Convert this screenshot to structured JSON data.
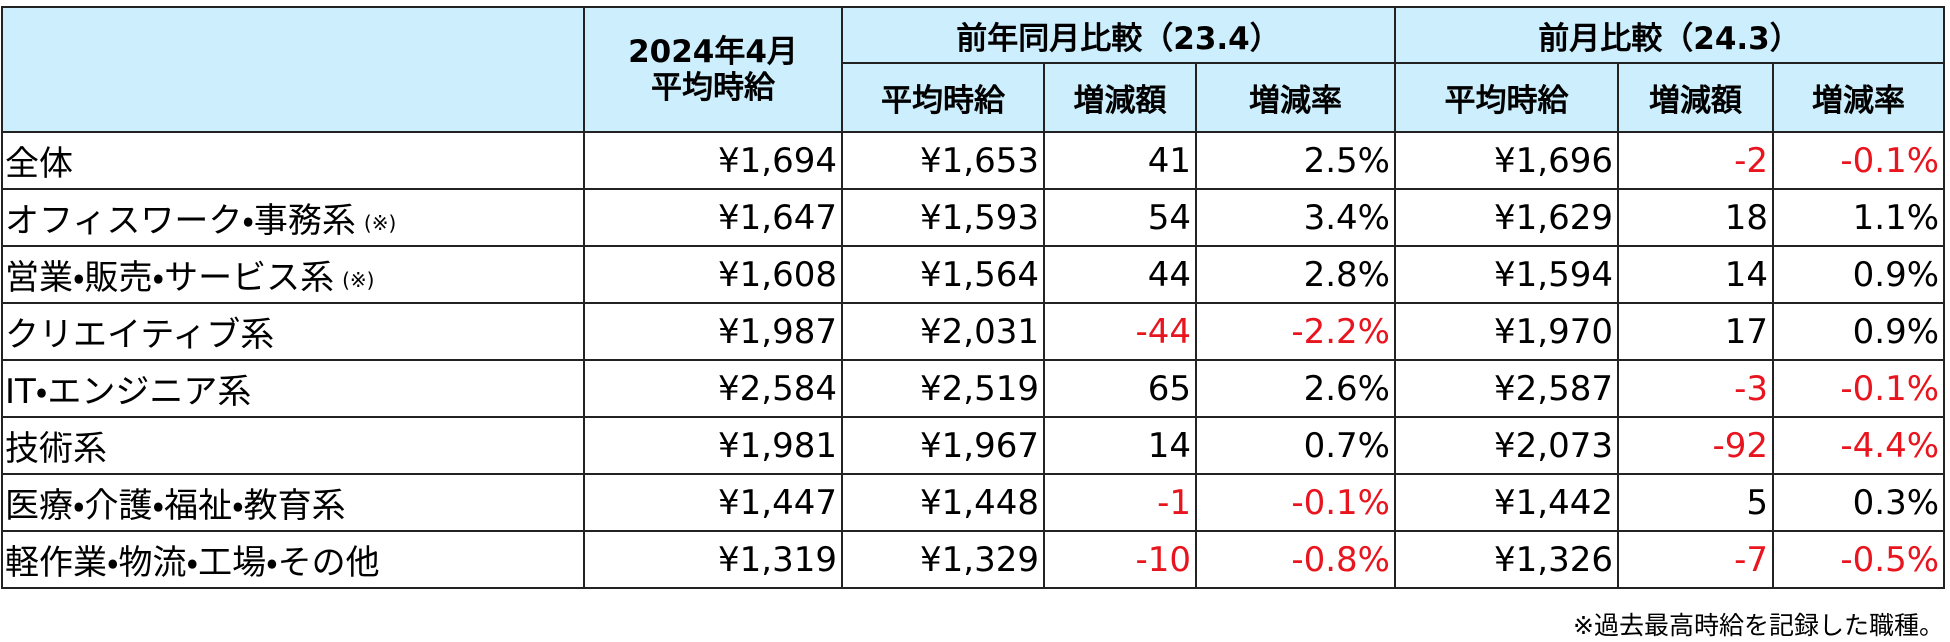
{
  "table": {
    "header": {
      "current": [
        "2024年4月",
        "平均時給"
      ],
      "group_a": "前年同月比較（23.4）",
      "group_b": "前月比較（24.3）",
      "sub_a": [
        "平均時給",
        "増減額",
        "増減率"
      ],
      "sub_b": [
        "平均時給",
        "増減額",
        "増減率"
      ]
    },
    "rows": [
      {
        "label": "全体",
        "cells": [
          "¥1,694",
          "¥1,653",
          "41",
          "2.5%",
          "¥1,696",
          "-2",
          "-0.1%"
        ]
      },
      {
        "label": "オフィスワーク・事務系",
        "note": "(※)",
        "cells": [
          "¥1,647",
          "¥1,593",
          "54",
          "3.4%",
          "¥1,629",
          "18",
          "1.1%"
        ]
      },
      {
        "label": "営業・販売・サービス系",
        "note": "(※)",
        "cells": [
          "¥1,608",
          "¥1,564",
          "44",
          "2.8%",
          "¥1,594",
          "14",
          "0.9%"
        ]
      },
      {
        "label": "クリエイティブ系",
        "cells": [
          "¥1,987",
          "¥2,031",
          "-44",
          "-2.2%",
          "¥1,970",
          "17",
          "0.9%"
        ]
      },
      {
        "label": "IT・エンジニア系",
        "cells": [
          "¥2,584",
          "¥2,519",
          "65",
          "2.6%",
          "¥2,587",
          "-3",
          "-0.1%"
        ]
      },
      {
        "label": "技術系",
        "cells": [
          "¥1,981",
          "¥1,967",
          "14",
          "0.7%",
          "¥2,073",
          "-92",
          "-4.4%"
        ]
      },
      {
        "label": "医療・介護・福祉・教育系",
        "cells": [
          "¥1,447",
          "¥1,448",
          "-1",
          "-0.1%",
          "¥1,442",
          "5",
          "0.3%"
        ]
      },
      {
        "label": "軽作業・物流・工場・その他",
        "cells": [
          "¥1,319",
          "¥1,329",
          "-10",
          "-0.8%",
          "¥1,326",
          "-7",
          "-0.5%"
        ]
      }
    ],
    "footnote": "※過去最高時給を記録した職種。"
  }
}
